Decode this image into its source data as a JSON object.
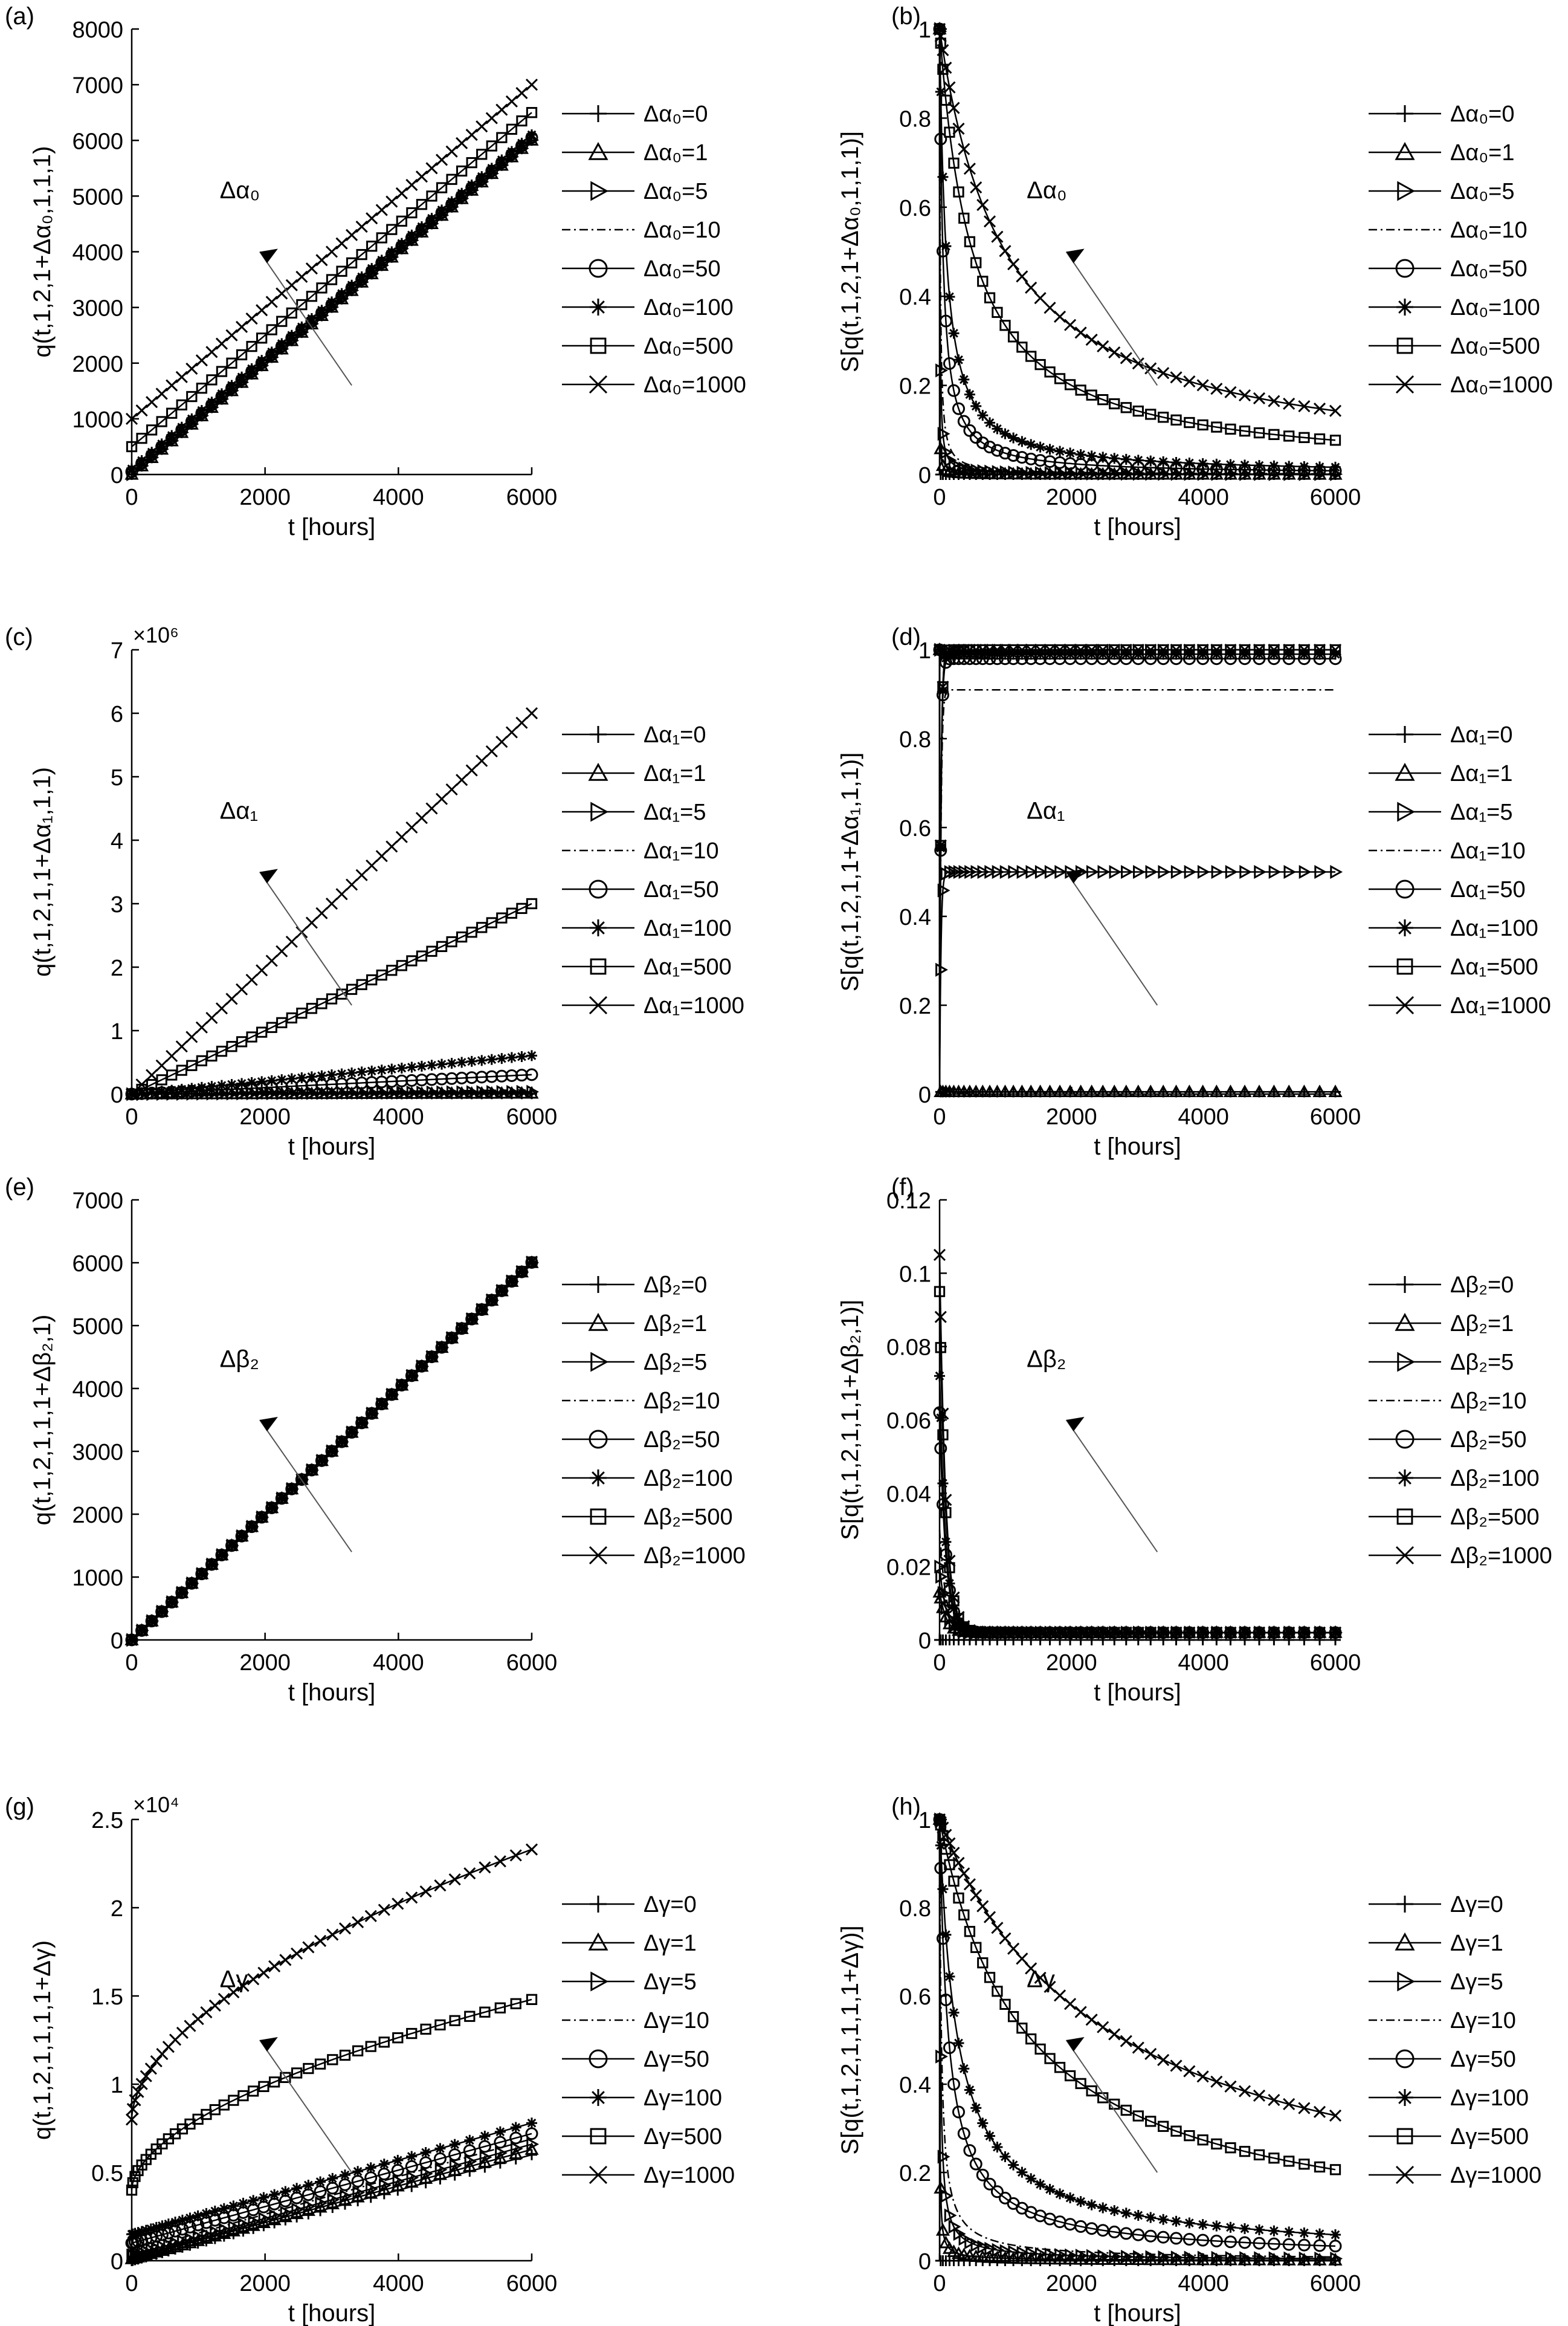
{
  "figure": {
    "panels": [
      {
        "id": "a",
        "label": "(a)",
        "ylabel": "q(t,1,2,1+Δα₀,1,1,1)",
        "xlabel": "t [hours]",
        "exponent": "",
        "annotation": "Δα₀",
        "legend_title_prefix": "Δα",
        "legend_sub": "0",
        "legend": [
          "Δα₀=0",
          "Δα₀=1",
          "Δα₀=5",
          "Δα₀=10",
          "Δα₀=50",
          "Δα₀=100",
          "Δα₀=500",
          "Δα₀=1000"
        ]
      },
      {
        "id": "b",
        "label": "(b)",
        "ylabel": "S[q(t,1,2,1+Δα₀,1,1,1)]",
        "xlabel": "t [hours]",
        "exponent": "",
        "annotation": "Δα₀",
        "legend": [
          "Δα₀=0",
          "Δα₀=1",
          "Δα₀=5",
          "Δα₀=10",
          "Δα₀=50",
          "Δα₀=100",
          "Δα₀=500",
          "Δα₀=1000"
        ]
      },
      {
        "id": "c",
        "label": "(c)",
        "ylabel": "q(t,1,2,1,1+Δα₁,1,1)",
        "xlabel": "t [hours]",
        "exponent": "×10⁶",
        "annotation": "Δα₁",
        "legend": [
          "Δα₁=0",
          "Δα₁=1",
          "Δα₁=5",
          "Δα₁=10",
          "Δα₁=50",
          "Δα₁=100",
          "Δα₁=500",
          "Δα₁=1000"
        ]
      },
      {
        "id": "d",
        "label": "(d)",
        "ylabel": "S[q(t,1,2,1,1+Δα₁,1,1)]",
        "xlabel": "t [hours]",
        "exponent": "",
        "annotation": "Δα₁",
        "legend": [
          "Δα₁=0",
          "Δα₁=1",
          "Δα₁=5",
          "Δα₁=10",
          "Δα₁=50",
          "Δα₁=100",
          "Δα₁=500",
          "Δα₁=1000"
        ]
      },
      {
        "id": "e",
        "label": "(e)",
        "ylabel": "q(t,1,2,1,1,1+Δβ₂,1)",
        "xlabel": "t [hours]",
        "exponent": "",
        "annotation": "Δβ₂",
        "legend": [
          "Δβ₂=0",
          "Δβ₂=1",
          "Δβ₂=5",
          "Δβ₂=10",
          "Δβ₂=50",
          "Δβ₂=100",
          "Δβ₂=500",
          "Δβ₂=1000"
        ]
      },
      {
        "id": "f",
        "label": "(f)",
        "ylabel": "S[q(t,1,2,1,1,1+Δβ₂,1)]",
        "xlabel": "t [hours]",
        "exponent": "",
        "annotation": "Δβ₂",
        "legend": [
          "Δβ₂=0",
          "Δβ₂=1",
          "Δβ₂=5",
          "Δβ₂=10",
          "Δβ₂=50",
          "Δβ₂=100",
          "Δβ₂=500",
          "Δβ₂=1000"
        ]
      },
      {
        "id": "g",
        "label": "(g)",
        "ylabel": "q(t,1,2,1,1,1,1+Δγ)",
        "xlabel": "t [hours]",
        "exponent": "×10⁴",
        "annotation": "Δγ",
        "legend": [
          "Δγ=0",
          "Δγ=1",
          "Δγ=5",
          "Δγ=10",
          "Δγ=50",
          "Δγ=100",
          "Δγ=500",
          "Δγ=1000"
        ]
      },
      {
        "id": "h",
        "label": "(h)",
        "ylabel": "S[q(t,1,2,1,1,1,1+Δγ)]",
        "xlabel": "t [hours]",
        "exponent": "",
        "annotation": "Δγ",
        "legend": [
          "Δγ=0",
          "Δγ=1",
          "Δγ=5",
          "Δγ=10",
          "Δγ=50",
          "Δγ=100",
          "Δγ=500",
          "Δγ=1000"
        ]
      }
    ]
  },
  "chart_data": [
    {
      "panel": "a",
      "type": "line",
      "xlabel": "t [hours]",
      "ylabel": "q(t,1,2,1+Δα₀,1,1,1)",
      "xlim": [
        0,
        6000
      ],
      "ylim": [
        0,
        8000
      ],
      "xticks": [
        0,
        2000,
        4000,
        6000
      ],
      "yticks": [
        0,
        1000,
        2000,
        3000,
        4000,
        5000,
        6000,
        7000,
        8000
      ],
      "ytick_labels": [
        "0",
        "1000",
        "2000",
        "3000",
        "4000",
        "5000",
        "6000",
        "7000",
        "8000"
      ],
      "grid": false,
      "legend_position": "outside-right",
      "series": [
        {
          "name": "Δα₀=0",
          "marker": "plus",
          "x": [
            0,
            6000
          ],
          "y": [
            0,
            6000
          ]
        },
        {
          "name": "Δα₀=1",
          "marker": "triangle-up",
          "x": [
            0,
            6000
          ],
          "y": [
            1,
            6001
          ]
        },
        {
          "name": "Δα₀=5",
          "marker": "triangle-right",
          "x": [
            0,
            6000
          ],
          "y": [
            5,
            6005
          ]
        },
        {
          "name": "Δα₀=10",
          "marker": "dashdot",
          "x": [
            0,
            6000
          ],
          "y": [
            10,
            6010
          ]
        },
        {
          "name": "Δα₀=50",
          "marker": "circle",
          "x": [
            0,
            6000
          ],
          "y": [
            50,
            6050
          ]
        },
        {
          "name": "Δα₀=100",
          "marker": "asterisk",
          "x": [
            0,
            6000
          ],
          "y": [
            100,
            6100
          ]
        },
        {
          "name": "Δα₀=500",
          "marker": "square",
          "x": [
            0,
            6000
          ],
          "y": [
            500,
            6500
          ]
        },
        {
          "name": "Δα₀=1000",
          "marker": "x",
          "x": [
            0,
            6000
          ],
          "y": [
            1000,
            7000
          ]
        }
      ]
    },
    {
      "panel": "b",
      "type": "line",
      "xlabel": "t [hours]",
      "ylabel": "S[q(t,1,2,1+Δα₀,1,1,1)]",
      "xlim": [
        0,
        6000
      ],
      "ylim": [
        0,
        1
      ],
      "xticks": [
        0,
        2000,
        4000,
        6000
      ],
      "yticks": [
        0,
        0.2,
        0.4,
        0.6,
        0.8,
        1
      ],
      "ytick_labels": [
        "0",
        "0.2",
        "0.4",
        "0.6",
        "0.8",
        "1"
      ],
      "grid": false,
      "legend_position": "outside-right",
      "series": [
        {
          "name": "Δα₀=0",
          "marker": "plus",
          "model": "frac",
          "param": 0
        },
        {
          "name": "Δα₀=1",
          "marker": "triangle-up",
          "model": "frac",
          "param": 1
        },
        {
          "name": "Δα₀=5",
          "marker": "triangle-right",
          "model": "frac",
          "param": 5
        },
        {
          "name": "Δα₀=10",
          "marker": "dashdot",
          "model": "frac",
          "param": 10
        },
        {
          "name": "Δα₀=50",
          "marker": "circle",
          "model": "frac",
          "param": 50
        },
        {
          "name": "Δα₀=100",
          "marker": "asterisk",
          "model": "frac",
          "param": 100
        },
        {
          "name": "Δα₀=500",
          "marker": "square",
          "model": "frac",
          "param": 500
        },
        {
          "name": "Δα₀=1000",
          "marker": "x",
          "model": "frac",
          "param": 1000
        }
      ]
    },
    {
      "panel": "c",
      "type": "line",
      "xlabel": "t [hours]",
      "ylabel": "q(t,1,2,1,1+Δα₁,1,1)",
      "xlim": [
        0,
        6000
      ],
      "ylim": [
        0,
        7
      ],
      "xticks": [
        0,
        2000,
        4000,
        6000
      ],
      "yticks": [
        0,
        1,
        2,
        3,
        4,
        5,
        6,
        7
      ],
      "ytick_labels": [
        "0",
        "1",
        "2",
        "3",
        "4",
        "5",
        "6",
        "7"
      ],
      "y_multiplier": "×10⁶",
      "grid": false,
      "legend_position": "outside-right",
      "series": [
        {
          "name": "Δα₁=0",
          "marker": "plus",
          "x": [
            0,
            6000
          ],
          "y": [
            0,
            0.006
          ]
        },
        {
          "name": "Δα₁=1",
          "marker": "triangle-up",
          "x": [
            0,
            6000
          ],
          "y": [
            0,
            0.012
          ]
        },
        {
          "name": "Δα₁=5",
          "marker": "triangle-right",
          "x": [
            0,
            6000
          ],
          "y": [
            0,
            0.036
          ]
        },
        {
          "name": "Δα₁=10",
          "marker": "dashdot",
          "x": [
            0,
            6000
          ],
          "y": [
            0,
            0.066
          ]
        },
        {
          "name": "Δα₁=50",
          "marker": "circle",
          "x": [
            0,
            6000
          ],
          "y": [
            0,
            0.306
          ]
        },
        {
          "name": "Δα₁=100",
          "marker": "asterisk",
          "x": [
            0,
            6000
          ],
          "y": [
            0,
            0.606
          ]
        },
        {
          "name": "Δα₁=500",
          "marker": "square",
          "x": [
            0,
            6000
          ],
          "y": [
            0,
            3.0
          ]
        },
        {
          "name": "Δα₁=1000",
          "marker": "x",
          "x": [
            0,
            6000
          ],
          "y": [
            0,
            6.0
          ]
        }
      ]
    },
    {
      "panel": "d",
      "type": "line",
      "xlabel": "t [hours]",
      "ylabel": "S[q(t,1,2,1,1+Δα₁,1,1)]",
      "xlim": [
        0,
        6000
      ],
      "ylim": [
        0,
        1
      ],
      "xticks": [
        0,
        2000,
        4000,
        6000
      ],
      "yticks": [
        0,
        0.2,
        0.4,
        0.6,
        0.8,
        1
      ],
      "ytick_labels": [
        "0",
        "0.2",
        "0.4",
        "0.6",
        "0.8",
        "1"
      ],
      "grid": false,
      "legend_position": "outside-right",
      "series": [
        {
          "name": "Δα₁=0",
          "marker": "plus",
          "model": "plateau",
          "param": 0.0
        },
        {
          "name": "Δα₁=1",
          "marker": "triangle-up",
          "model": "plateau",
          "param": 0.0
        },
        {
          "name": "Δα₁=5",
          "marker": "triangle-right",
          "model": "plateau",
          "param": 0.5
        },
        {
          "name": "Δα₁=10",
          "marker": "dashdot",
          "model": "plateau",
          "param": 0.91
        },
        {
          "name": "Δα₁=50",
          "marker": "circle",
          "model": "plateau",
          "param": 0.98
        },
        {
          "name": "Δα₁=100",
          "marker": "asterisk",
          "model": "plateau",
          "param": 0.99
        },
        {
          "name": "Δα₁=500",
          "marker": "square",
          "model": "plateau",
          "param": 1.0
        },
        {
          "name": "Δα₁=1000",
          "marker": "x",
          "model": "plateau",
          "param": 1.0
        }
      ]
    },
    {
      "panel": "e",
      "type": "line",
      "xlabel": "t [hours]",
      "ylabel": "q(t,1,2,1,1,1+Δβ₂,1)",
      "xlim": [
        0,
        6000
      ],
      "ylim": [
        0,
        7000
      ],
      "xticks": [
        0,
        2000,
        4000,
        6000
      ],
      "yticks": [
        0,
        1000,
        2000,
        3000,
        4000,
        5000,
        6000,
        7000
      ],
      "ytick_labels": [
        "0",
        "1000",
        "2000",
        "3000",
        "4000",
        "5000",
        "6000",
        "7000"
      ],
      "grid": false,
      "legend_position": "outside-right",
      "series": [
        {
          "name": "Δβ₂=0",
          "marker": "plus",
          "x": [
            0,
            6000
          ],
          "y": [
            0,
            6000
          ]
        },
        {
          "name": "Δβ₂=1",
          "marker": "triangle-up",
          "x": [
            0,
            6000
          ],
          "y": [
            0,
            6000
          ]
        },
        {
          "name": "Δβ₂=5",
          "marker": "triangle-right",
          "x": [
            0,
            6000
          ],
          "y": [
            0,
            6001
          ]
        },
        {
          "name": "Δβ₂=10",
          "marker": "dashdot",
          "x": [
            0,
            6000
          ],
          "y": [
            0,
            6002
          ]
        },
        {
          "name": "Δβ₂=50",
          "marker": "circle",
          "x": [
            0,
            6000
          ],
          "y": [
            0,
            6005
          ]
        },
        {
          "name": "Δβ₂=100",
          "marker": "asterisk",
          "x": [
            0,
            6000
          ],
          "y": [
            0,
            6008
          ]
        },
        {
          "name": "Δβ₂=500",
          "marker": "square",
          "x": [
            0,
            6000
          ],
          "y": [
            0,
            6012
          ]
        },
        {
          "name": "Δβ₂=1000",
          "marker": "x",
          "x": [
            0,
            6000
          ],
          "y": [
            0,
            6015
          ]
        }
      ]
    },
    {
      "panel": "f",
      "type": "line",
      "xlabel": "t [hours]",
      "ylabel": "S[q(t,1,2,1,1,1+Δβ₂,1)]",
      "xlim": [
        0,
        6000
      ],
      "ylim": [
        0,
        0.12
      ],
      "xticks": [
        0,
        2000,
        4000,
        6000
      ],
      "yticks": [
        0,
        0.02,
        0.04,
        0.06,
        0.08,
        0.1,
        0.12
      ],
      "ytick_labels": [
        "0",
        "0.02",
        "0.04",
        "0.06",
        "0.08",
        "0.1",
        "0.12"
      ],
      "grid": false,
      "legend_position": "outside-right",
      "series": [
        {
          "name": "Δβ₂=0",
          "marker": "plus",
          "model": "spike",
          "param": 0.0
        },
        {
          "name": "Δβ₂=1",
          "marker": "triangle-up",
          "model": "spike",
          "param": 0.013
        },
        {
          "name": "Δβ₂=5",
          "marker": "triangle-right",
          "model": "spike",
          "param": 0.02
        },
        {
          "name": "Δβ₂=10",
          "marker": "dashdot",
          "model": "spike",
          "param": 0.03
        },
        {
          "name": "Δβ₂=50",
          "marker": "circle",
          "model": "spike",
          "param": 0.062
        },
        {
          "name": "Δβ₂=100",
          "marker": "asterisk",
          "model": "spike",
          "param": 0.072
        },
        {
          "name": "Δβ₂=500",
          "marker": "square",
          "model": "spike",
          "param": 0.095
        },
        {
          "name": "Δβ₂=1000",
          "marker": "x",
          "model": "spike",
          "param": 0.105
        }
      ]
    },
    {
      "panel": "g",
      "type": "line",
      "xlabel": "t [hours]",
      "ylabel": "q(t,1,2,1,1,1,1+Δγ)",
      "xlim": [
        0,
        6000
      ],
      "ylim": [
        0,
        2.5
      ],
      "xticks": [
        0,
        2000,
        4000,
        6000
      ],
      "yticks": [
        0,
        0.5,
        1,
        1.5,
        2,
        2.5
      ],
      "ytick_labels": [
        "0",
        "0.5",
        "1",
        "1.5",
        "2",
        "2.5"
      ],
      "y_multiplier": "×10⁴",
      "grid": false,
      "legend_position": "outside-right",
      "series": [
        {
          "name": "Δγ=0",
          "marker": "plus",
          "model": "growth",
          "param": [
            0,
            0.6
          ]
        },
        {
          "name": "Δγ=1",
          "marker": "triangle-up",
          "model": "growth",
          "param": [
            0.01,
            0.63
          ]
        },
        {
          "name": "Δγ=5",
          "marker": "triangle-right",
          "model": "growth",
          "param": [
            0.03,
            0.66
          ]
        },
        {
          "name": "Δγ=10",
          "marker": "dashdot",
          "model": "growth",
          "param": [
            0.05,
            0.69
          ]
        },
        {
          "name": "Δγ=50",
          "marker": "circle",
          "model": "growth",
          "param": [
            0.1,
            0.72
          ]
        },
        {
          "name": "Δγ=100",
          "marker": "asterisk",
          "model": "growth",
          "param": [
            0.15,
            0.78
          ]
        },
        {
          "name": "Δγ=500",
          "marker": "square",
          "model": "growth",
          "param": [
            0.4,
            1.48
          ]
        },
        {
          "name": "Δγ=1000",
          "marker": "x",
          "model": "growth",
          "param": [
            0.8,
            2.33
          ]
        }
      ]
    },
    {
      "panel": "h",
      "type": "line",
      "xlabel": "t [hours]",
      "ylabel": "S[q(t,1,2,1,1,1,1+Δγ)]",
      "xlim": [
        0,
        6000
      ],
      "ylim": [
        0,
        1
      ],
      "xticks": [
        0,
        2000,
        4000,
        6000
      ],
      "yticks": [
        0,
        0.2,
        0.4,
        0.6,
        0.8,
        1
      ],
      "ytick_labels": [
        "0",
        "0.2",
        "0.4",
        "0.6",
        "0.8",
        "1"
      ],
      "grid": false,
      "legend_position": "outside-right",
      "series": [
        {
          "name": "Δγ=0",
          "marker": "plus",
          "model": "frac",
          "param": 0
        },
        {
          "name": "Δγ=1",
          "marker": "triangle-up",
          "model": "frac",
          "param": 1
        },
        {
          "name": "Δγ=5",
          "marker": "triangle-right",
          "model": "frac",
          "param": 5
        },
        {
          "name": "Δγ=10",
          "marker": "dashdot",
          "model": "frac",
          "param": 10
        },
        {
          "name": "Δγ=50",
          "marker": "circle",
          "model": "frac",
          "param": 50
        },
        {
          "name": "Δγ=100",
          "marker": "asterisk",
          "model": "frac",
          "param": 100
        },
        {
          "name": "Δγ=500",
          "marker": "square",
          "model": "frac",
          "param": 500
        },
        {
          "name": "Δγ=1000",
          "marker": "x",
          "model": "frac",
          "param": 1000
        }
      ]
    }
  ]
}
